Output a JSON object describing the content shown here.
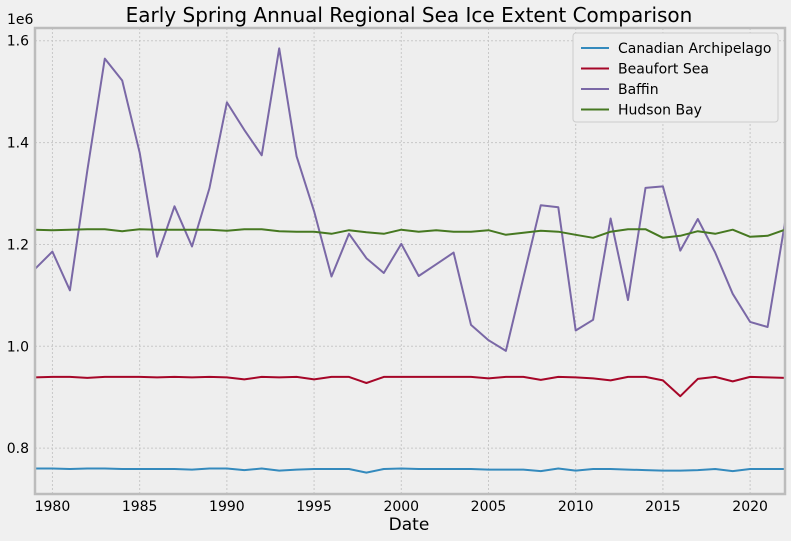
{
  "chart_data": {
    "type": "line",
    "title": "Early Spring Annual Regional Sea Ice Extent Comparison",
    "xlabel": "Date",
    "ylabel": "",
    "y_offset_label": "1e6",
    "xlim": [
      1979,
      2022
    ],
    "ylim": [
      710000,
      1625000
    ],
    "x_ticks": [
      1980,
      1985,
      1990,
      1995,
      2000,
      2005,
      2010,
      2015,
      2020
    ],
    "y_ticks": [
      800000,
      1000000,
      1200000,
      1400000,
      1600000
    ],
    "y_tick_labels": [
      "0.8",
      "1.0",
      "1.2",
      "1.4",
      "1.6"
    ],
    "grid": true,
    "legend_position": "top-right",
    "x": [
      1979,
      1980,
      1981,
      1982,
      1983,
      1984,
      1985,
      1986,
      1987,
      1988,
      1989,
      1990,
      1991,
      1992,
      1993,
      1994,
      1995,
      1996,
      1997,
      1998,
      1999,
      2000,
      2001,
      2002,
      2003,
      2004,
      2005,
      2006,
      2007,
      2008,
      2009,
      2010,
      2011,
      2012,
      2013,
      2014,
      2015,
      2016,
      2017,
      2018,
      2019,
      2020,
      2021,
      2022
    ],
    "series": [
      {
        "name": "Canadian Archipelago",
        "color": "#348ABD",
        "values": [
          760000,
          760000,
          759000,
          760000,
          760000,
          759000,
          759000,
          759000,
          759000,
          758000,
          760000,
          760000,
          757000,
          760000,
          756000,
          758000,
          759000,
          759000,
          759000,
          752000,
          759000,
          760000,
          759000,
          759000,
          759000,
          759000,
          758000,
          758000,
          758000,
          755000,
          760000,
          756000,
          759000,
          759000,
          758000,
          757000,
          756000,
          756000,
          757000,
          759000,
          755000,
          759000,
          759000,
          759000
        ]
      },
      {
        "name": "Beaufort Sea",
        "color": "#A60628",
        "values": [
          939000,
          940000,
          940000,
          938000,
          940000,
          940000,
          940000,
          939000,
          940000,
          939000,
          940000,
          939000,
          935000,
          940000,
          939000,
          940000,
          935000,
          940000,
          940000,
          928000,
          940000,
          940000,
          940000,
          940000,
          940000,
          940000,
          937000,
          940000,
          940000,
          934000,
          940000,
          939000,
          937000,
          933000,
          940000,
          940000,
          933000,
          902000,
          936000,
          940000,
          931000,
          940000,
          939000,
          938000
        ]
      },
      {
        "name": "Baffin",
        "color": "#7A68A6",
        "values": [
          1152000,
          1186000,
          1110000,
          1345000,
          1565000,
          1522000,
          1380000,
          1176000,
          1275000,
          1196000,
          1310000,
          1479000,
          1425000,
          1375000,
          1585000,
          1373000,
          1265000,
          1137000,
          1221000,
          1173000,
          1144000,
          1201000,
          1138000,
          1161000,
          1184000,
          1042000,
          1012000,
          991000,
          1135000,
          1277000,
          1273000,
          1031000,
          1052000,
          1251000,
          1091000,
          1311000,
          1314000,
          1188000,
          1250000,
          1184000,
          1103000,
          1048000,
          1038000,
          1243000
        ]
      },
      {
        "name": "Hudson Bay",
        "color": "#467821",
        "values": [
          1229000,
          1228000,
          1229000,
          1230000,
          1230000,
          1226000,
          1230000,
          1229000,
          1229000,
          1229000,
          1229000,
          1227000,
          1230000,
          1230000,
          1226000,
          1225000,
          1225000,
          1221000,
          1228000,
          1224000,
          1221000,
          1229000,
          1225000,
          1228000,
          1225000,
          1225000,
          1228000,
          1219000,
          1223000,
          1227000,
          1225000,
          1219000,
          1213000,
          1225000,
          1230000,
          1230000,
          1213000,
          1217000,
          1226000,
          1221000,
          1229000,
          1215000,
          1217000,
          1229000
        ]
      }
    ]
  }
}
